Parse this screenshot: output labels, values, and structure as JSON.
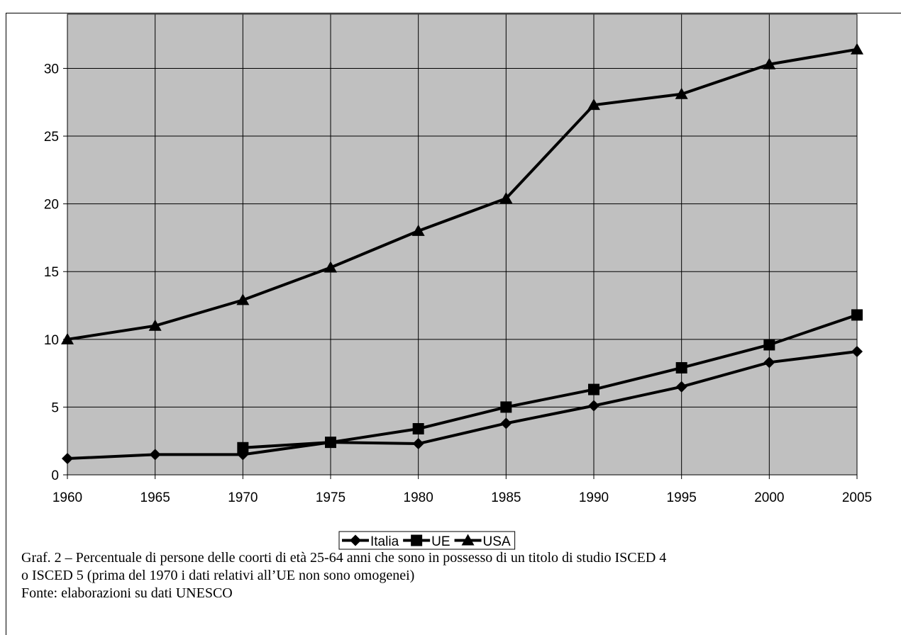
{
  "chart_data": {
    "type": "line",
    "categories": [
      "1960",
      "1965",
      "1970",
      "1975",
      "1980",
      "1985",
      "1990",
      "1995",
      "2000",
      "2005"
    ],
    "series": [
      {
        "name": "Italia",
        "color": "#000000",
        "marker": "diamond",
        "values": [
          1.2,
          1.5,
          1.5,
          2.4,
          2.3,
          3.8,
          5.1,
          6.5,
          8.3,
          9.1
        ]
      },
      {
        "name": "UE",
        "color": "#000000",
        "marker": "square",
        "values": [
          null,
          null,
          2.0,
          2.4,
          3.4,
          5.0,
          6.3,
          7.9,
          9.6,
          11.8
        ]
      },
      {
        "name": "USA",
        "color": "#000000",
        "marker": "triangle",
        "values": [
          10,
          11,
          12.9,
          15.3,
          18,
          20.4,
          27.3,
          28.1,
          30.3,
          31.4
        ]
      }
    ],
    "ylim": [
      0,
      34
    ],
    "yticks": [
      0,
      5,
      10,
      15,
      20,
      25,
      30
    ],
    "grid": true,
    "plot_background": "#c0c0c0",
    "legend": "bottom",
    "caption": [
      "Graf. 2 – Percentuale di persone delle coorti di età 25-64 anni che sono in possesso di un titolo di studio ISCED 4",
      "o ISCED 5 (prima del 1970 i dati relativi all’UE non sono omogenei)",
      "Fonte: elaborazioni su dati UNESCO"
    ]
  }
}
